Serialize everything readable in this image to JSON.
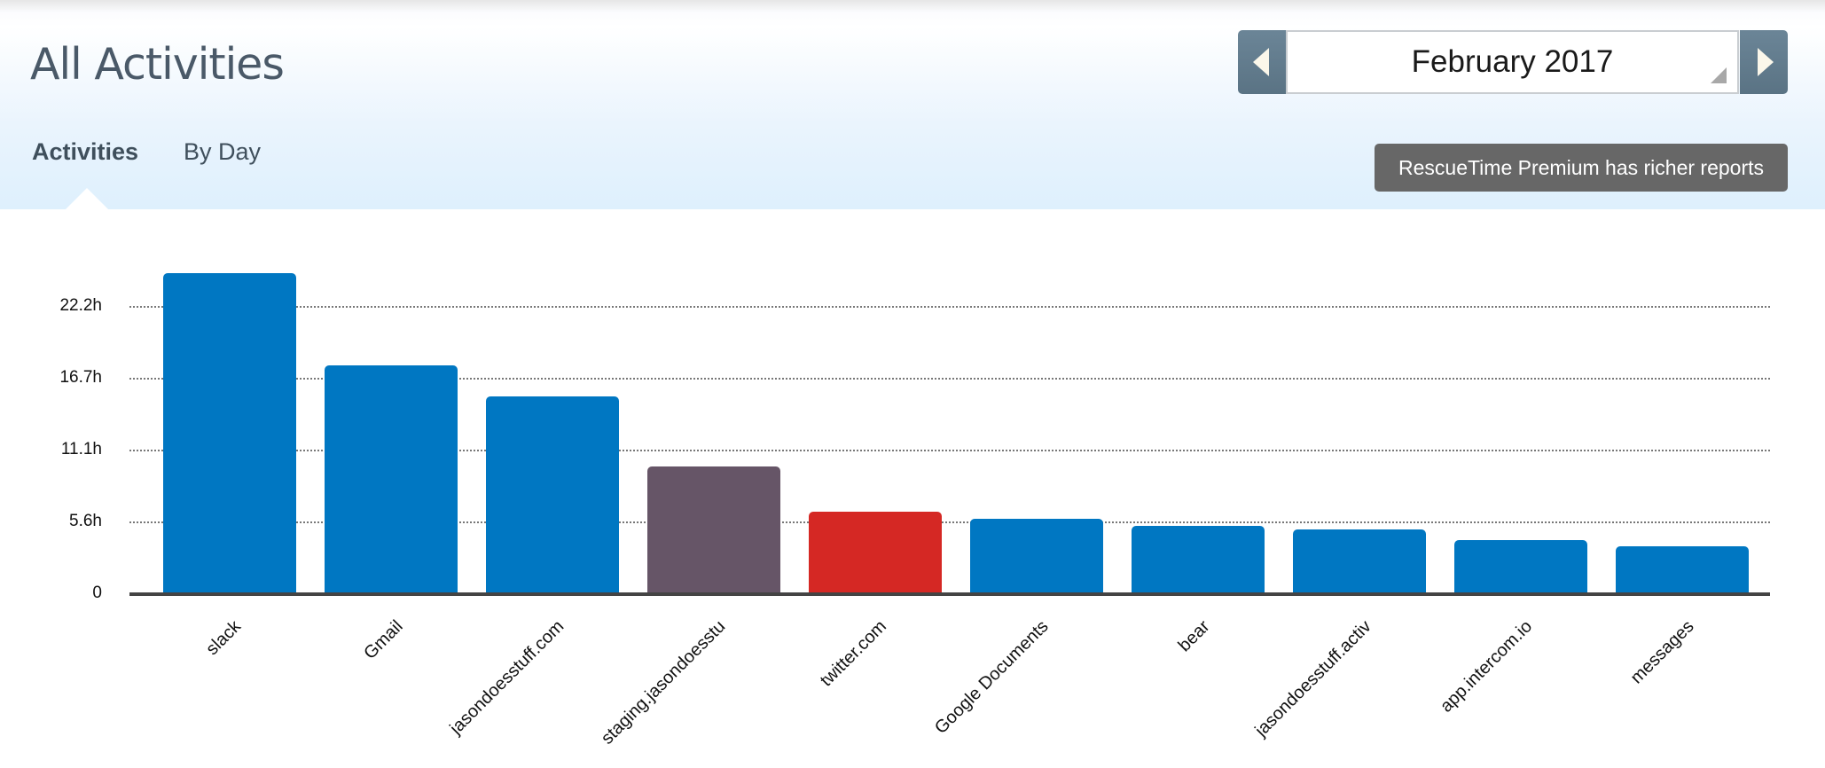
{
  "header": {
    "title": "All Activities",
    "tabs": [
      {
        "label": "Activities",
        "active": true
      },
      {
        "label": "By Day",
        "active": false
      }
    ],
    "date_picker": {
      "value": "February 2017",
      "prev_icon": "triangle-left-icon",
      "next_icon": "triangle-right-icon"
    },
    "premium_button": "RescueTime Premium has richer reports"
  },
  "colors": {
    "productive_blue": "#0077c2",
    "neutral_purple": "#665567",
    "distracting_red": "#d52824",
    "date_button": "#5f798b",
    "premium_bg": "#676767",
    "header_bg": "#def0fd"
  },
  "chart_data": {
    "type": "bar",
    "title": "",
    "xlabel": "",
    "ylabel": "",
    "categories": [
      "slack",
      "Gmail",
      "jasondoesstuff.com",
      "staging.jasondoesstu",
      "twitter.com",
      "Google Documents",
      "bear",
      "jasondoesstuff.activ",
      "app.intercom.io",
      "messages"
    ],
    "values": [
      24.8,
      17.7,
      15.3,
      9.9,
      6.4,
      5.8,
      5.3,
      5.0,
      4.2,
      3.7
    ],
    "unit": "h",
    "bar_colors": [
      "#0077c2",
      "#0077c2",
      "#0077c2",
      "#665567",
      "#d52824",
      "#0077c2",
      "#0077c2",
      "#0077c2",
      "#0077c2",
      "#0077c2"
    ],
    "yticks": [
      "0",
      "5.6h",
      "11.1h",
      "16.7h",
      "22.2h"
    ],
    "ytick_values": [
      0,
      5.55,
      11.1,
      16.65,
      22.2
    ],
    "ylim": [
      0,
      26
    ],
    "grid": true,
    "grid_style": "dotted",
    "legend": null
  }
}
